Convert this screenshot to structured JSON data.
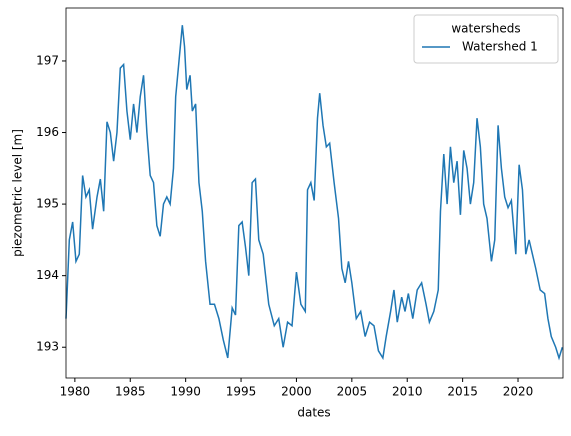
{
  "chart_data": {
    "type": "line",
    "x_label": "dates",
    "y_label": "piezometric level [m]",
    "legend_title": "watersheds",
    "legend": "upper right",
    "xlim": [
      1979.2,
      2024.06
    ],
    "xticks": [
      1980,
      1985,
      1990,
      1995,
      2000,
      2005,
      2010,
      2015,
      2020
    ],
    "ylim": [
      192.57,
      197.74
    ],
    "yticks": [
      193,
      194,
      195,
      196,
      197
    ],
    "x": [
      1979.2,
      1979.5,
      1979.8,
      1980.1,
      1980.4,
      1980.7,
      1981.0,
      1981.3,
      1981.6,
      1982.0,
      1982.3,
      1982.6,
      1982.9,
      1983.2,
      1983.5,
      1983.8,
      1984.1,
      1984.4,
      1984.7,
      1985.0,
      1985.3,
      1985.6,
      1985.9,
      1986.2,
      1986.5,
      1986.8,
      1987.1,
      1987.4,
      1987.7,
      1988.0,
      1988.3,
      1988.6,
      1988.9,
      1989.1,
      1989.4,
      1989.7,
      1989.9,
      1990.1,
      1990.4,
      1990.6,
      1990.9,
      1991.2,
      1991.5,
      1991.8,
      1992.2,
      1992.6,
      1993.0,
      1993.4,
      1993.8,
      1994.2,
      1994.5,
      1994.8,
      1995.1,
      1995.4,
      1995.7,
      1996.0,
      1996.3,
      1996.6,
      1997.0,
      1997.5,
      1998.0,
      1998.4,
      1998.8,
      1999.2,
      1999.6,
      2000.0,
      2000.4,
      2000.8,
      2001.0,
      2001.3,
      2001.6,
      2001.9,
      2002.1,
      2002.4,
      2002.7,
      2003.0,
      2003.4,
      2003.8,
      2004.1,
      2004.4,
      2004.7,
      2005.0,
      2005.4,
      2005.8,
      2006.2,
      2006.6,
      2007.0,
      2007.4,
      2007.8,
      2008.1,
      2008.5,
      2008.8,
      2009.1,
      2009.5,
      2009.8,
      2010.1,
      2010.5,
      2010.9,
      2011.3,
      2011.7,
      2012.0,
      2012.4,
      2012.8,
      2013.0,
      2013.3,
      2013.6,
      2013.9,
      2014.2,
      2014.5,
      2014.8,
      2015.1,
      2015.4,
      2015.7,
      2016.0,
      2016.3,
      2016.6,
      2016.9,
      2017.2,
      2017.6,
      2017.9,
      2018.2,
      2018.5,
      2018.8,
      2019.1,
      2019.4,
      2019.8,
      2020.1,
      2020.4,
      2020.7,
      2021.0,
      2021.3,
      2021.6,
      2022.0,
      2022.4,
      2022.7,
      2023.0,
      2023.4,
      2023.7,
      2024.0
    ],
    "series": [
      {
        "name": "Watershed 1",
        "color": "#1f77b4",
        "values": [
          193.4,
          194.5,
          194.75,
          194.2,
          194.3,
          195.4,
          195.1,
          195.2,
          194.65,
          195.1,
          195.35,
          194.9,
          196.15,
          196.0,
          195.6,
          196.0,
          196.9,
          196.95,
          196.3,
          195.9,
          196.4,
          196.0,
          196.5,
          196.8,
          196.0,
          195.4,
          195.3,
          194.7,
          194.55,
          195.0,
          195.1,
          195.0,
          195.5,
          196.5,
          197.0,
          197.5,
          197.2,
          196.6,
          196.8,
          196.3,
          196.4,
          195.3,
          194.9,
          194.2,
          193.6,
          193.6,
          193.4,
          193.1,
          192.85,
          193.55,
          193.45,
          194.7,
          194.75,
          194.4,
          194.0,
          195.3,
          195.35,
          194.5,
          194.3,
          193.6,
          193.3,
          193.4,
          193.0,
          193.35,
          193.3,
          194.05,
          193.6,
          193.5,
          195.2,
          195.3,
          195.05,
          196.2,
          196.55,
          196.1,
          195.8,
          195.85,
          195.3,
          194.8,
          194.1,
          193.9,
          194.2,
          193.9,
          193.4,
          193.5,
          193.15,
          193.35,
          193.3,
          192.95,
          192.85,
          193.15,
          193.5,
          193.8,
          193.35,
          193.7,
          193.5,
          193.75,
          193.4,
          193.8,
          193.9,
          193.6,
          193.35,
          193.5,
          193.8,
          194.9,
          195.7,
          195.0,
          195.8,
          195.3,
          195.6,
          194.85,
          195.75,
          195.5,
          195.0,
          195.3,
          196.2,
          195.8,
          195.0,
          194.8,
          194.2,
          194.5,
          196.1,
          195.5,
          195.1,
          194.95,
          195.05,
          194.3,
          195.55,
          195.2,
          194.3,
          194.5,
          194.3,
          194.1,
          193.8,
          193.75,
          193.4,
          193.15,
          193.0,
          192.85,
          193.0
        ]
      }
    ]
  }
}
